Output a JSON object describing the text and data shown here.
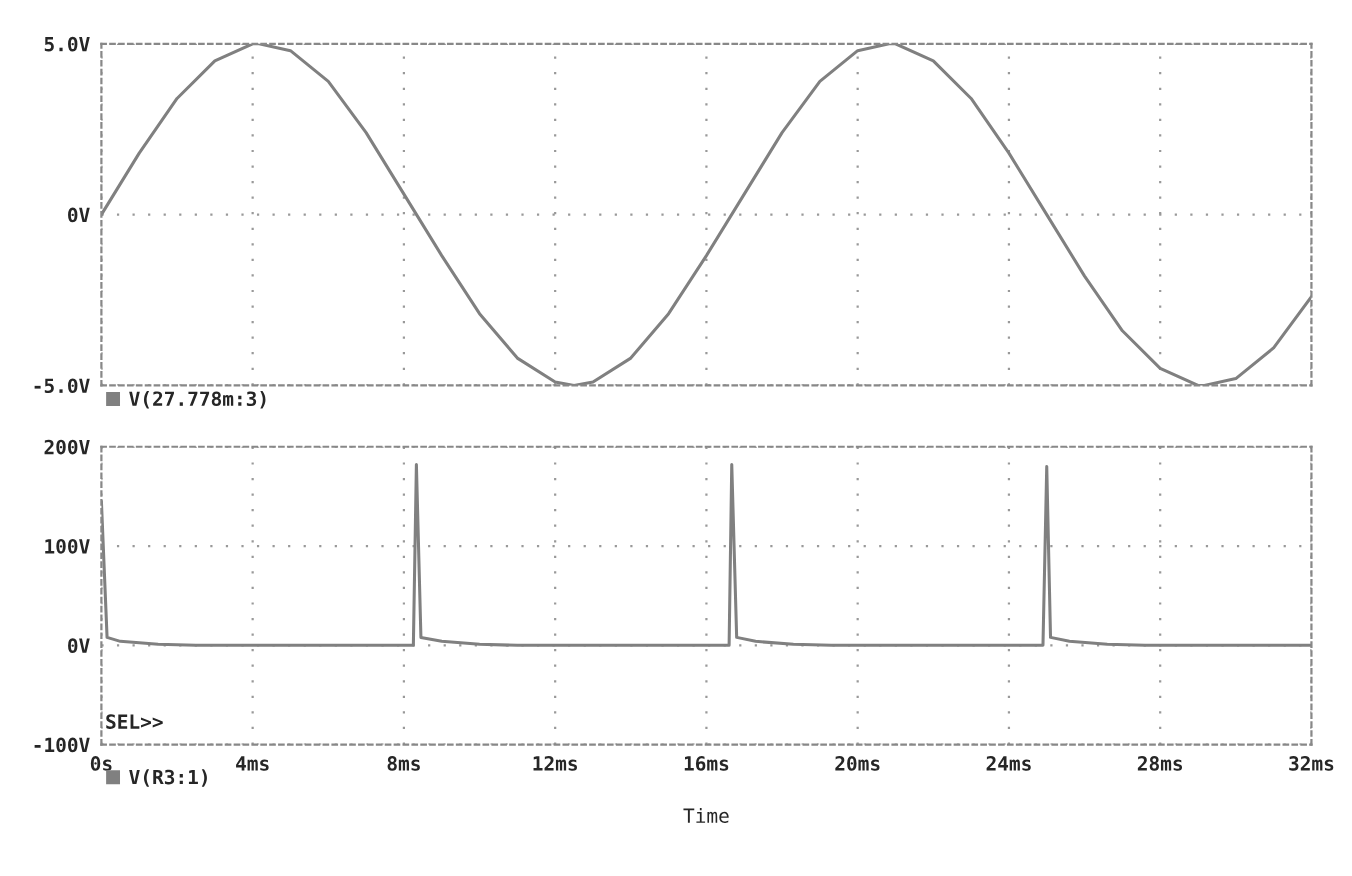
{
  "chart_data": [
    {
      "type": "line",
      "x": [
        0,
        1,
        2,
        3,
        4,
        4.17,
        5,
        6,
        7,
        8,
        9,
        10,
        11,
        12,
        12.5,
        13,
        14,
        15,
        16,
        17,
        18,
        19,
        20,
        20.83,
        21,
        22,
        23,
        24,
        25,
        26,
        27,
        28,
        29,
        29.17,
        30,
        31,
        32
      ],
      "series": [
        {
          "name": "V(27.778m:3)",
          "color": "#808080",
          "values": [
            0,
            1.8,
            3.4,
            4.5,
            5.0,
            5.0,
            4.8,
            3.9,
            2.4,
            0.6,
            -1.2,
            -2.9,
            -4.2,
            -4.9,
            -5.0,
            -4.9,
            -4.2,
            -2.9,
            -1.2,
            0.6,
            2.4,
            3.9,
            4.8,
            5.0,
            5.0,
            4.5,
            3.4,
            1.8,
            0,
            -1.8,
            -3.4,
            -4.5,
            -5.0,
            -5.0,
            -4.8,
            -3.9,
            -2.4
          ]
        }
      ],
      "xlim": [
        0,
        32
      ],
      "xticks": [
        0,
        4,
        8,
        12,
        16,
        20,
        24,
        28,
        32
      ],
      "ylim": [
        -5,
        5
      ],
      "yticks": [
        {
          "value": -5,
          "label": "-5.0V"
        },
        {
          "value": 0,
          "label": "0V"
        },
        {
          "value": 5,
          "label": "5.0V"
        }
      ],
      "tick_labels": "y",
      "grid": true,
      "legend": "bottom left"
    },
    {
      "type": "line",
      "x": [
        0,
        0.15,
        0.5,
        1.5,
        2.5,
        8.25,
        8.33,
        8.45,
        9,
        10,
        11,
        16.6,
        16.67,
        16.8,
        17.3,
        18.3,
        19.3,
        24.9,
        25.0,
        25.1,
        25.6,
        26.6,
        27.6,
        32
      ],
      "series": [
        {
          "name": "V(R3:1)",
          "color": "#808080",
          "values": [
            145,
            8,
            4,
            1,
            0,
            0,
            182,
            8,
            4,
            1,
            0,
            0,
            182,
            8,
            4,
            1,
            0,
            0,
            180,
            8,
            4,
            1,
            0,
            0
          ]
        }
      ],
      "xlim": [
        0,
        32
      ],
      "xticks": [
        {
          "value": 0,
          "label": "0s"
        },
        {
          "value": 4,
          "label": "4ms"
        },
        {
          "value": 8,
          "label": "8ms"
        },
        {
          "value": 12,
          "label": "12ms"
        },
        {
          "value": 16,
          "label": "16ms"
        },
        {
          "value": 20,
          "label": "20ms"
        },
        {
          "value": 24,
          "label": "24ms"
        },
        {
          "value": 28,
          "label": "28ms"
        },
        {
          "value": 32,
          "label": "32ms"
        }
      ],
      "ylim": [
        -100,
        200
      ],
      "yticks": [
        {
          "value": -100,
          "label": "-100V"
        },
        {
          "value": 0,
          "label": "0V"
        },
        {
          "value": 100,
          "label": "100V"
        },
        {
          "value": 200,
          "label": "200V"
        }
      ],
      "xlabel": "Time",
      "annotations": [
        "SEL>>"
      ],
      "grid": true,
      "legend": "bottom left"
    }
  ]
}
